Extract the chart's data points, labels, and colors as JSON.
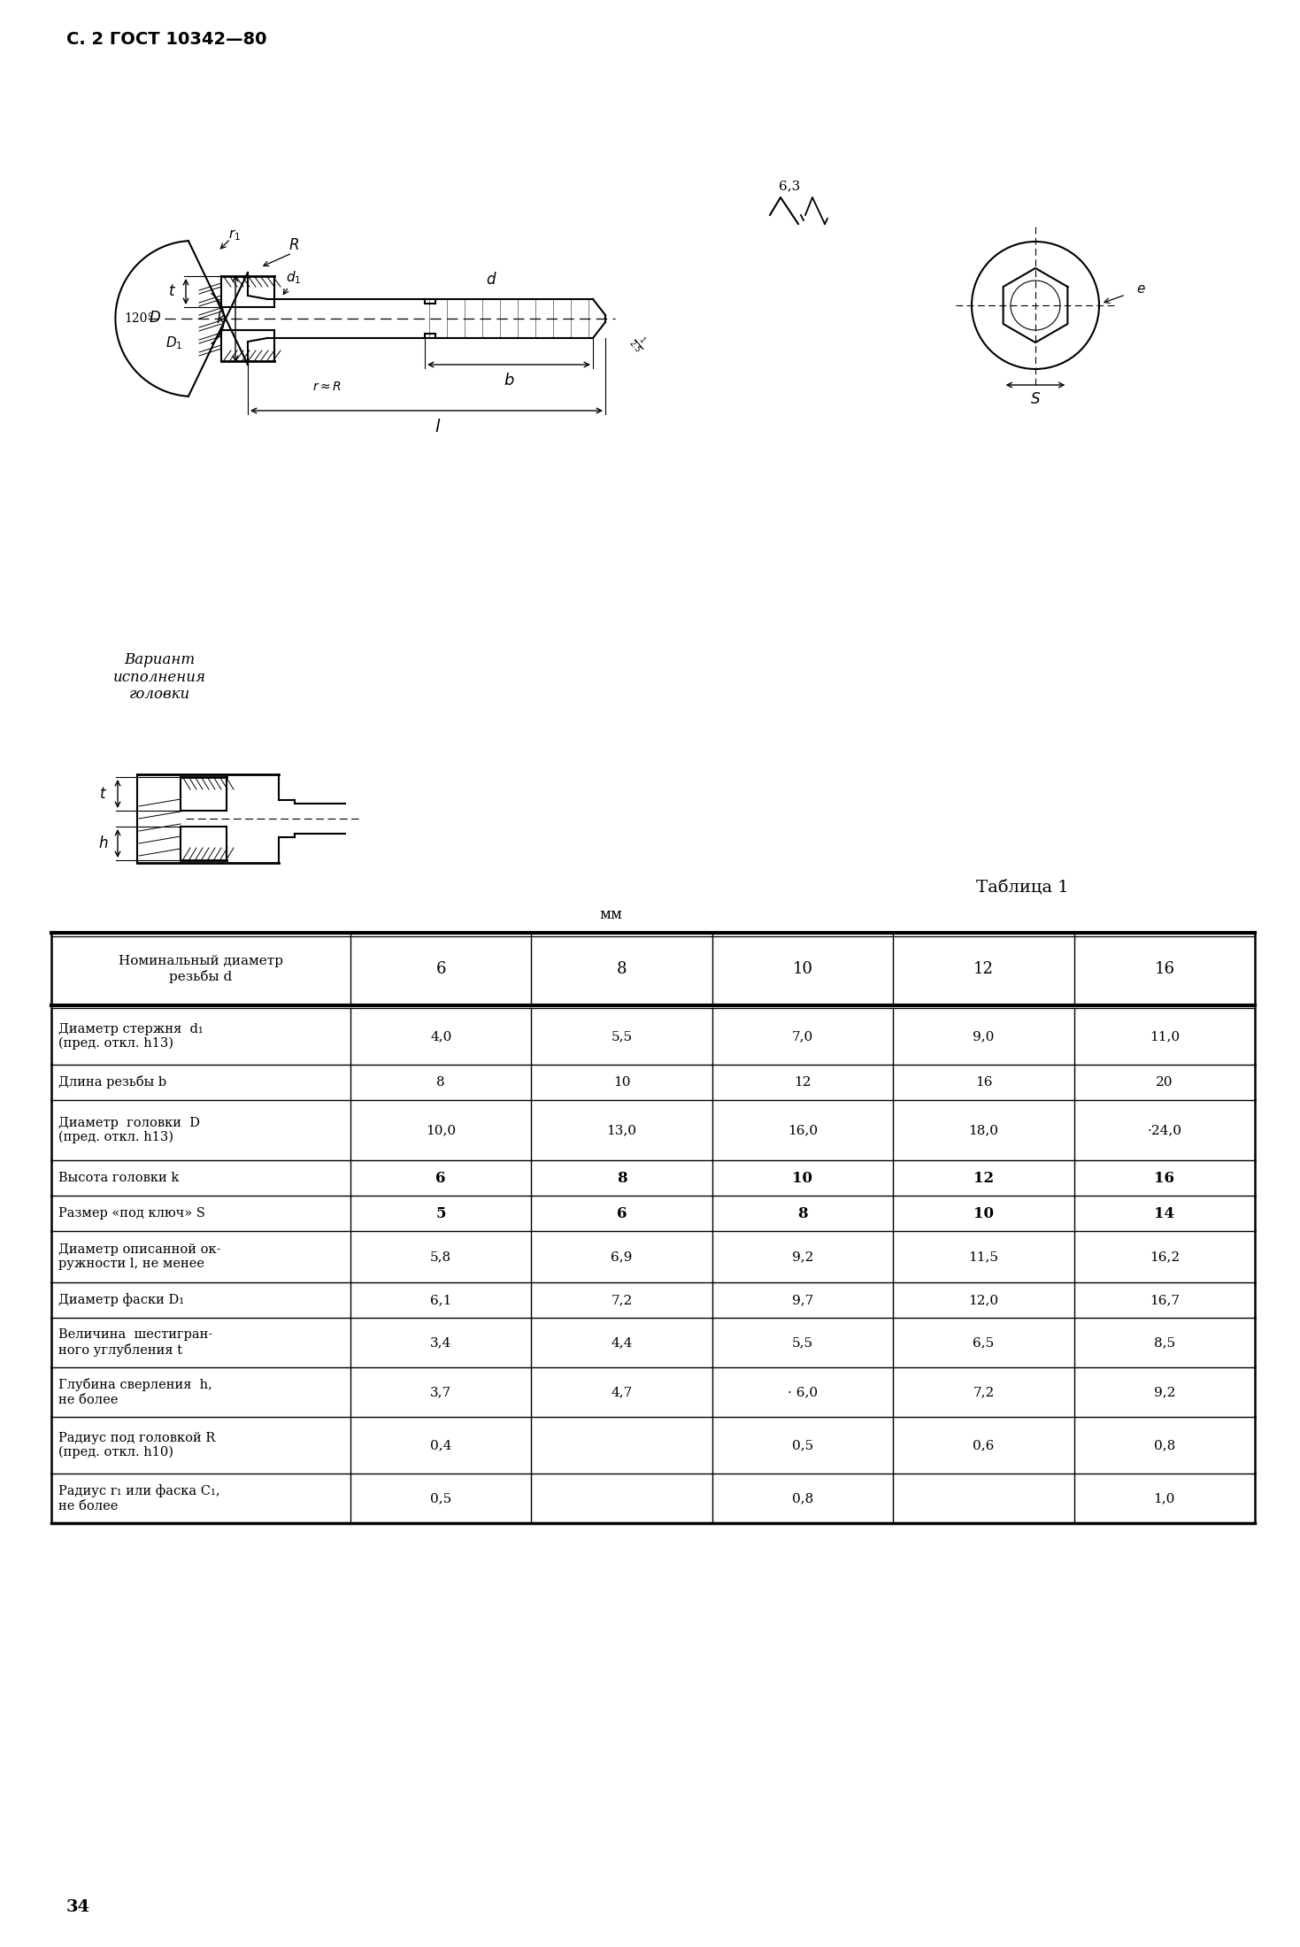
{
  "page_label": "С. 2 ГОСТ 10342—80",
  "page_number": "34",
  "table_title": "Таблица 1",
  "mm_label": "мм",
  "col_headers": [
    "6",
    "8",
    "10",
    "12",
    "16"
  ],
  "rows": [
    [
      "Диаметр стержня  d₁\n(пред. откл. h13)",
      "4,0",
      "5,5",
      "7,0",
      "9,0",
      "11,0"
    ],
    [
      "Длина резьбы b",
      "8",
      "10",
      "12",
      "16",
      "20"
    ],
    [
      "Диаметр  головки  D\n(пред. откл. h13)",
      "10,0",
      "13,0",
      "16,0",
      "18,0",
      "·24,0"
    ],
    [
      "Высота головки k",
      "6",
      "8",
      "10",
      "12",
      "16"
    ],
    [
      "Размер «под ключ» S",
      "5",
      "6",
      "8",
      "10",
      "14"
    ],
    [
      "Диаметр описанной ок-\nружности l, не менее",
      "5,8",
      "6,9",
      "9,2",
      "11,5",
      "16,2"
    ],
    [
      "Диаметр фаски D₁",
      "6,1",
      "7,2",
      "9,7",
      "12,0",
      "16,7"
    ],
    [
      "Величина  шестигран-\nного углубления t",
      "3,4",
      "4,4",
      "5,5",
      "6,5",
      "8,5"
    ],
    [
      "Глубина сверления  h,\nне более",
      "3,7",
      "4,7",
      "· 6,0",
      "7,2",
      "9,2"
    ],
    [
      "Радиус под головкой R\n(пред. откл. h10)",
      "0,4",
      "",
      "0,5",
      "0,6",
      "0,8"
    ],
    [
      "Радиус r₁ или фаска C₁,\nне более",
      "0,5",
      "",
      "0,8",
      "",
      "1,0"
    ]
  ],
  "bg_color": "#ffffff",
  "text_color": "#000000",
  "variant_label": "Вариант\nисполнения\nголовки",
  "surface_finish": "6,3"
}
